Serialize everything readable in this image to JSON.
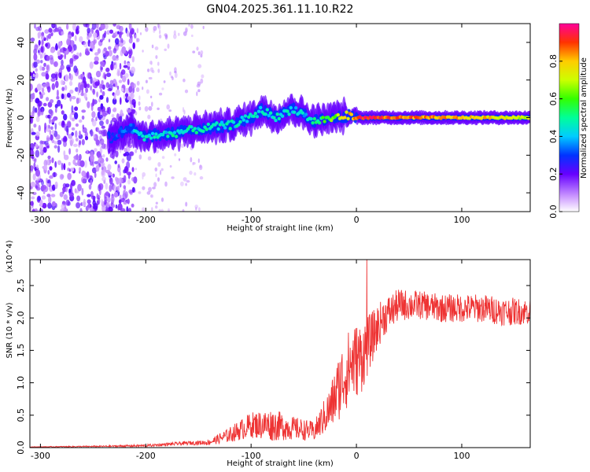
{
  "chart_data": [
    {
      "type": "heatmap",
      "title": "GN04.2025.361.11.10.R22",
      "xlabel": "Height of straight line (km)",
      "ylabel": "Frequency (Hz)",
      "xlim": [
        -310,
        165
      ],
      "ylim": [
        -50,
        50
      ],
      "x_ticks": [
        -300,
        -200,
        -100,
        0,
        100
      ],
      "x_tick_labels": [
        "-300",
        "-200",
        "-100",
        "0",
        "100"
      ],
      "y_ticks": [
        -40,
        -20,
        0,
        20,
        40
      ],
      "y_tick_labels": [
        "-40",
        "-20",
        "0",
        "20",
        "40"
      ],
      "colorbar": {
        "label": "Normalized spectral amplitude",
        "range": [
          0,
          1
        ],
        "ticks": [
          0.0,
          0.2,
          0.4,
          0.6,
          0.8
        ],
        "tick_labels": [
          "0.0",
          "0.2",
          "0.4",
          "0.6",
          "0.8"
        ]
      },
      "ridge": {
        "description": "Dominant frequency ridge with amplitude",
        "points": [
          {
            "x": -230,
            "f": -10,
            "amp": 0.25
          },
          {
            "x": -215,
            "f": -5,
            "amp": 0.35
          },
          {
            "x": -205,
            "f": -10,
            "amp": 0.45
          },
          {
            "x": -180,
            "f": -9,
            "amp": 0.45
          },
          {
            "x": -150,
            "f": -6,
            "amp": 0.45
          },
          {
            "x": -120,
            "f": -4,
            "amp": 0.45
          },
          {
            "x": -100,
            "f": 0,
            "amp": 0.45
          },
          {
            "x": -90,
            "f": 4,
            "amp": 0.45
          },
          {
            "x": -75,
            "f": 0,
            "amp": 0.45
          },
          {
            "x": -60,
            "f": 5,
            "amp": 0.4
          },
          {
            "x": -40,
            "f": -2,
            "amp": 0.45
          },
          {
            "x": -20,
            "f": 0,
            "amp": 0.65
          },
          {
            "x": -10,
            "f": 1,
            "amp": 0.75
          },
          {
            "x": 0,
            "f": 0,
            "amp": 0.9
          },
          {
            "x": 20,
            "f": 0,
            "amp": 0.9
          },
          {
            "x": 60,
            "f": 0,
            "amp": 0.85
          },
          {
            "x": 100,
            "f": 0,
            "amp": 0.8
          },
          {
            "x": 140,
            "f": 0,
            "amp": 0.75
          },
          {
            "x": 165,
            "f": 0,
            "amp": 0.7
          }
        ]
      }
    },
    {
      "type": "line",
      "xlabel": "Height of straight line (km)",
      "ylabel": "SNR (10 * v/v)",
      "y_multiplier": "(x10^4)",
      "xlim": [
        -310,
        165
      ],
      "ylim": [
        0,
        2.9
      ],
      "x_ticks": [
        -300,
        -200,
        -100,
        0,
        100
      ],
      "x_tick_labels": [
        "-300",
        "-200",
        "-100",
        "0",
        "100"
      ],
      "y_ticks": [
        0.0,
        0.5,
        1.0,
        1.5,
        2.0,
        2.5
      ],
      "y_tick_labels": [
        "0.0",
        "0.5",
        "1.0",
        "1.5",
        "2.0",
        "2.5"
      ],
      "series": [
        {
          "name": "SNR",
          "color": "#ee3333",
          "envelope": {
            "x": [
              -310,
              -240,
              -200,
              -160,
              -140,
              -120,
              -100,
              -80,
              -60,
              -40,
              -25,
              -15,
              -5,
              5,
              15,
              25,
              40,
              60,
              80,
              100,
              120,
              140,
              165
            ],
            "mean": [
              0.01,
              0.02,
              0.03,
              0.07,
              0.08,
              0.2,
              0.35,
              0.35,
              0.3,
              0.25,
              0.6,
              1.0,
              1.3,
              1.4,
              1.7,
              2.0,
              2.2,
              2.2,
              2.15,
              2.15,
              2.15,
              2.1,
              2.1
            ],
            "noise": [
              0.005,
              0.01,
              0.02,
              0.03,
              0.04,
              0.12,
              0.2,
              0.25,
              0.18,
              0.15,
              0.35,
              0.55,
              0.6,
              0.55,
              0.4,
              0.3,
              0.25,
              0.22,
              0.22,
              0.22,
              0.22,
              0.22,
              0.2
            ]
          },
          "peak": {
            "x": 10,
            "y": 2.9
          }
        }
      ]
    }
  ]
}
